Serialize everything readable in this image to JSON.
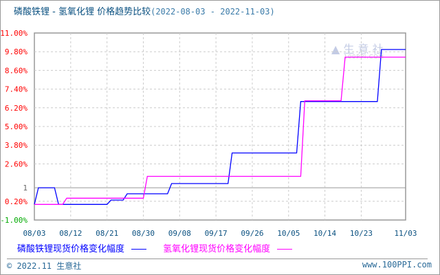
{
  "title": {
    "main": "磷酸铁锂 - 氢氧化锂 价格趋势比较",
    "range": "(2022-08-03 - 2022-11-03)"
  },
  "watermark": {
    "brand": "生意社",
    "domain": "100PPI.COM"
  },
  "footer": {
    "copyright": "© 2022.11 生意社",
    "site": "www.100PPI.com"
  },
  "colors": {
    "series1": "#0000ff",
    "series2": "#ff00ff",
    "ytick_pos": "#ff0000",
    "ytick_neg": "#00aa00",
    "ytick_ref": "#666666",
    "xtick": "#0a5080"
  },
  "chart_data": {
    "type": "line",
    "title": "磷酸铁锂 - 氢氧化锂 价格趋势比较(2022-08-03 - 2022-11-03)",
    "xlabel": "",
    "ylabel": "",
    "year": 2022,
    "xlim": [
      "08/03",
      "11/03"
    ],
    "ylim": [
      -1.0,
      11.0
    ],
    "grid": true,
    "legend": "bottom",
    "xticks": [
      "08/03",
      "08/12",
      "08/21",
      "08/30",
      "09/08",
      "09/17",
      "09/26",
      "10/05",
      "10/14",
      "10/23",
      "11/03"
    ],
    "yticks": [
      {
        "value": 11.0,
        "label": "11.00%"
      },
      {
        "value": 9.8,
        "label": "9.80%"
      },
      {
        "value": 8.6,
        "label": "8.60%"
      },
      {
        "value": 7.4,
        "label": "7.40%"
      },
      {
        "value": 6.2,
        "label": "6.20%"
      },
      {
        "value": 5.0,
        "label": "5.00%"
      },
      {
        "value": 3.8,
        "label": "3.80%"
      },
      {
        "value": 2.6,
        "label": "2.60%"
      },
      {
        "value": 1.07,
        "label": "1",
        "reference": true
      },
      {
        "value": 0.2,
        "label": "0.20%"
      },
      {
        "value": -1.0,
        "label": "-1.00%"
      }
    ],
    "series": [
      {
        "name": "磷酸铁锂现货价格变化幅度",
        "color": "#0000ff",
        "points": [
          [
            "08/03",
            0
          ],
          [
            "08/04",
            1.07
          ],
          [
            "08/08",
            1.07
          ],
          [
            "08/09",
            0
          ],
          [
            "08/21",
            0
          ],
          [
            "08/22",
            0.28
          ],
          [
            "08/25",
            0.28
          ],
          [
            "08/26",
            0.68
          ],
          [
            "09/05",
            0.68
          ],
          [
            "09/06",
            1.34
          ],
          [
            "09/20",
            1.34
          ],
          [
            "09/21",
            3.3
          ],
          [
            "10/07",
            3.3
          ],
          [
            "10/08",
            6.6
          ],
          [
            "10/27",
            6.6
          ],
          [
            "10/28",
            9.94
          ],
          [
            "11/03",
            9.94
          ]
        ]
      },
      {
        "name": "氢氧化锂现货价格变化幅度",
        "color": "#ff00ff",
        "points": [
          [
            "08/03",
            0
          ],
          [
            "08/10",
            0
          ],
          [
            "08/11",
            0.4
          ],
          [
            "08/30",
            0.4
          ],
          [
            "08/31",
            1.8
          ],
          [
            "10/08",
            1.8
          ],
          [
            "10/09",
            6.65
          ],
          [
            "10/18",
            6.65
          ],
          [
            "10/19",
            9.45
          ],
          [
            "11/03",
            9.45
          ]
        ]
      }
    ]
  }
}
